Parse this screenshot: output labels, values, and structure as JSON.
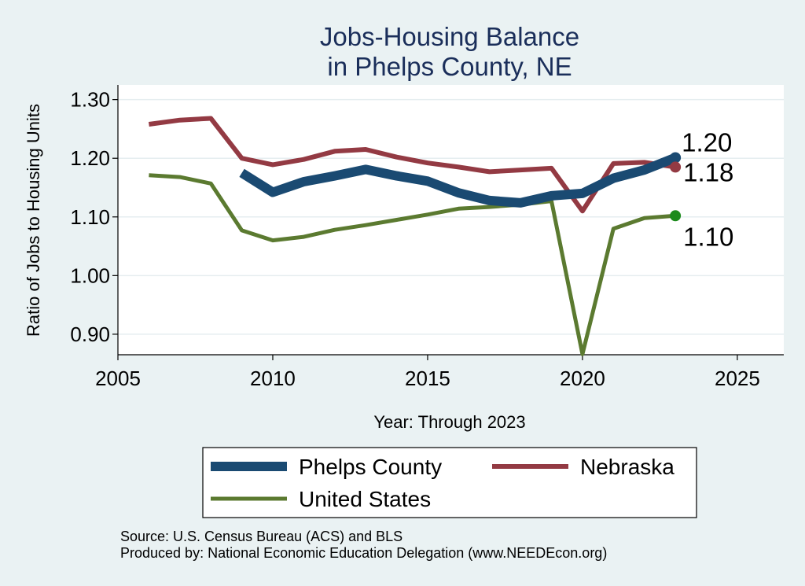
{
  "chart_data": {
    "type": "line",
    "title": [
      "Jobs-Housing Balance",
      "in Phelps County, NE"
    ],
    "xlabel": "Year: Through 2023",
    "ylabel": "Ratio of Jobs to Housing Units",
    "xlim": [
      2005,
      2026.5
    ],
    "ylim": [
      0.865,
      1.325
    ],
    "x_ticks": [
      2005,
      2010,
      2015,
      2020,
      2025
    ],
    "y_ticks": [
      0.9,
      1.0,
      1.1,
      1.2,
      1.3
    ],
    "y_tick_labels": [
      "0.90",
      "1.00",
      "1.10",
      "1.20",
      "1.30"
    ],
    "grid": true,
    "legend_position": "bottom",
    "series": [
      {
        "name": "Phelps County",
        "color": "#1a4a72",
        "width": 12,
        "marker_color": "#1a4a72",
        "end_label": "1.20",
        "x": [
          2009,
          2010,
          2011,
          2012,
          2013,
          2014,
          2015,
          2016,
          2017,
          2018,
          2019,
          2020,
          2021,
          2022,
          2023
        ],
        "values": [
          1.175,
          1.142,
          1.16,
          1.17,
          1.181,
          1.17,
          1.161,
          1.141,
          1.128,
          1.124,
          1.136,
          1.14,
          1.166,
          1.18,
          1.201
        ]
      },
      {
        "name": "Nebraska",
        "color": "#933a43",
        "width": 6,
        "marker_color": "#933a43",
        "end_label": "1.18",
        "x": [
          2006,
          2007,
          2008,
          2009,
          2010,
          2011,
          2012,
          2013,
          2014,
          2015,
          2016,
          2017,
          2018,
          2019,
          2020,
          2021,
          2022,
          2023
        ],
        "values": [
          1.258,
          1.265,
          1.268,
          1.2,
          1.189,
          1.198,
          1.212,
          1.215,
          1.202,
          1.192,
          1.185,
          1.177,
          1.18,
          1.183,
          1.11,
          1.191,
          1.193,
          1.185
        ]
      },
      {
        "name": "United States",
        "color": "#5b7a30",
        "width": 5,
        "marker_color": "#1c8a1c",
        "end_label": "1.10",
        "x": [
          2006,
          2007,
          2008,
          2009,
          2010,
          2011,
          2012,
          2013,
          2014,
          2015,
          2016,
          2017,
          2018,
          2019,
          2020,
          2021,
          2022,
          2023
        ],
        "values": [
          1.171,
          1.168,
          1.157,
          1.077,
          1.06,
          1.066,
          1.078,
          1.086,
          1.095,
          1.104,
          1.114,
          1.117,
          1.121,
          1.127,
          0.866,
          1.08,
          1.098,
          1.102
        ]
      }
    ]
  },
  "source_text": "Source: U.S. Census Bureau (ACS) and BLS",
  "producer_text": "Produced by: National Economic Education Delegation (www.NEEDEcon.org)"
}
